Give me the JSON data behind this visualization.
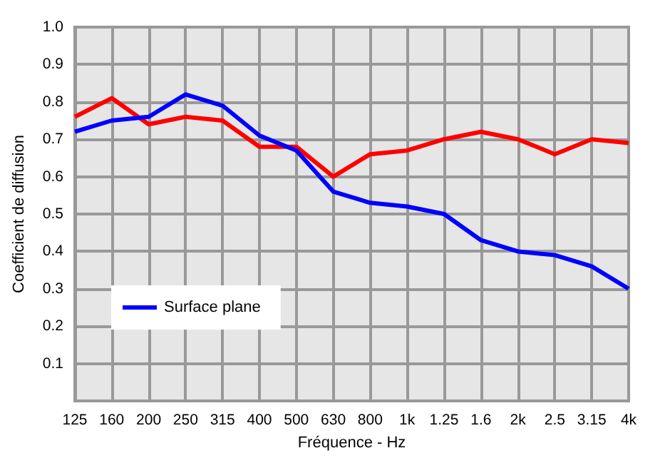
{
  "chart_data": {
    "type": "line",
    "xlabel": "Fréquence - Hz",
    "ylabel": "Coefficient de diffusion",
    "categories": [
      "125",
      "160",
      "200",
      "250",
      "315",
      "400",
      "500",
      "630",
      "800",
      "1k",
      "1.25",
      "1.6",
      "2k",
      "2.5",
      "3.15",
      "4k"
    ],
    "series": [
      {
        "color": "#ff0000",
        "values": [
          0.76,
          0.81,
          0.74,
          0.76,
          0.75,
          0.68,
          0.68,
          0.6,
          0.66,
          0.67,
          0.7,
          0.72,
          0.7,
          0.66,
          0.7,
          0.69
        ]
      },
      {
        "name": "Surface plane",
        "color": "#0000ff",
        "values": [
          0.72,
          0.75,
          0.76,
          0.82,
          0.79,
          0.71,
          0.67,
          0.56,
          0.53,
          0.52,
          0.5,
          0.43,
          0.4,
          0.39,
          0.36,
          0.3
        ]
      }
    ],
    "ylim": [
      0,
      1
    ],
    "yticks": [
      {
        "value": 0,
        "label": null
      },
      0.1,
      0.2,
      0.3,
      0.4,
      0.5,
      0.6,
      0.7,
      0.8,
      0.9,
      {
        "value": 1,
        "label": "1.0"
      }
    ],
    "grid": true,
    "legend": "bottom left",
    "marker": "none",
    "line_style": "solid"
  }
}
